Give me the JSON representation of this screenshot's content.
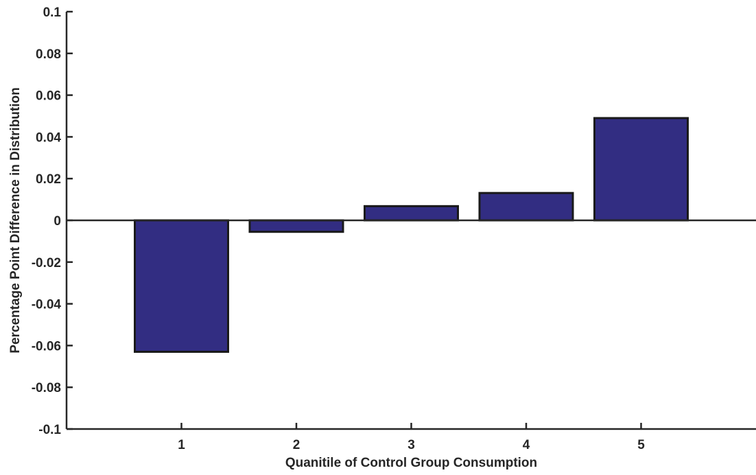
{
  "chart_data": {
    "type": "bar",
    "categories": [
      "1",
      "2",
      "3",
      "4",
      "5"
    ],
    "values": [
      -0.063,
      -0.0055,
      0.0068,
      0.0131,
      0.049
    ],
    "xlabel": "Quanitile of Control Group Consumption",
    "ylabel": "Percentage Point Difference in Distribution",
    "ylim": [
      -0.1,
      0.1
    ],
    "xlim": [
      0,
      6
    ],
    "yticks": [
      "-0.1",
      "-0.08",
      "-0.06",
      "-0.04",
      "-0.02",
      "0",
      "0.02",
      "0.04",
      "0.06",
      "0.08",
      "0.1"
    ],
    "ytick_values": [
      -0.1,
      -0.08,
      -0.06,
      -0.04,
      -0.02,
      0,
      0.02,
      0.04,
      0.06,
      0.08,
      0.1
    ],
    "grid": false,
    "bar_color": "#322d82",
    "edge_color": "#1a1a1a",
    "axis_color": "#262626"
  }
}
